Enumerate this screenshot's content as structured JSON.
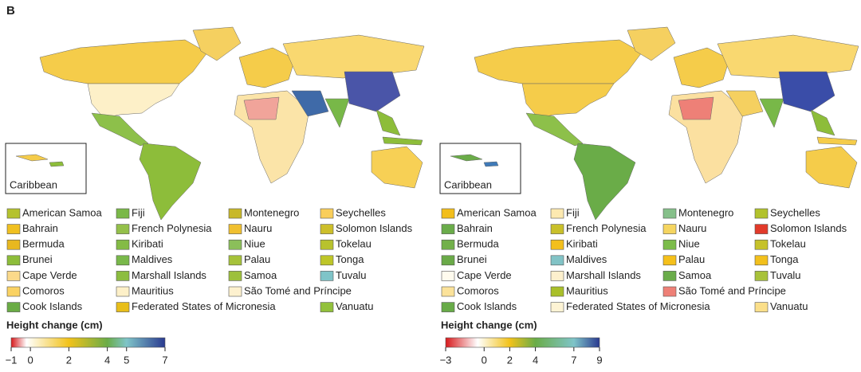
{
  "panel_label": "B",
  "panels": [
    {
      "inset_label": "Caribbean",
      "legend": [
        {
          "name": "American Samoa",
          "color": "#b5c22e"
        },
        {
          "name": "Bahrain",
          "color": "#f0c020"
        },
        {
          "name": "Bermuda",
          "color": "#e8b820"
        },
        {
          "name": "Brunei",
          "color": "#8dbd3a"
        },
        {
          "name": "Cape Verde",
          "color": "#fbd98a"
        },
        {
          "name": "Comoros",
          "color": "#fad263"
        },
        {
          "name": "Cook Islands",
          "color": "#6aac45"
        },
        {
          "name": "Fiji",
          "color": "#7ab848"
        },
        {
          "name": "French Polynesia",
          "color": "#94c04a"
        },
        {
          "name": "Kiribati",
          "color": "#84bb45"
        },
        {
          "name": "Maldives",
          "color": "#79b84a"
        },
        {
          "name": "Marshall Islands",
          "color": "#8cbd40"
        },
        {
          "name": "Mauritius",
          "color": "#fdf0c8"
        },
        {
          "name": "Federated States of Micronesia",
          "color": "#e8be1a"
        },
        {
          "name": "Montenegro",
          "color": "#c8b82a"
        },
        {
          "name": "Nauru",
          "color": "#f0c030"
        },
        {
          "name": "Niue",
          "color": "#8bbf5a"
        },
        {
          "name": "Palau",
          "color": "#a6c23a"
        },
        {
          "name": "Samoa",
          "color": "#9dc03c"
        },
        {
          "name": "São Tomé and Príncipe",
          "color": "#fdf1cf"
        },
        {
          "name": "Seychelles",
          "color": "#f9ce5a"
        },
        {
          "name": "Solomon Islands",
          "color": "#cdbf2a"
        },
        {
          "name": "Tokelau",
          "color": "#b8c22e"
        },
        {
          "name": "Tonga",
          "color": "#bec628"
        },
        {
          "name": "Tuvalu",
          "color": "#7fc4c8"
        },
        {
          "name": "Vanuatu",
          "color": "#92c13c"
        }
      ],
      "colorbar": {
        "title": "Height change (cm)",
        "range": [
          -1,
          7
        ],
        "ticks": [
          {
            "value": -1,
            "label": "−1"
          },
          0,
          2,
          4,
          5,
          7
        ],
        "stops": [
          {
            "value": -1,
            "color": "#d7191c"
          },
          {
            "value": -0.2,
            "color": "#ffffff"
          },
          {
            "value": 2,
            "color": "#f2c21a"
          },
          {
            "value": 4,
            "color": "#6aac48"
          },
          {
            "value": 5,
            "color": "#7fc4c8"
          },
          {
            "value": 7,
            "color": "#2a3a90"
          }
        ]
      }
    },
    {
      "inset_label": "Caribbean",
      "legend": [
        {
          "name": "American Samoa",
          "color": "#f2be1c"
        },
        {
          "name": "Bahrain",
          "color": "#6aac4a"
        },
        {
          "name": "Bermuda",
          "color": "#72b04a"
        },
        {
          "name": "Brunei",
          "color": "#6aaa48"
        },
        {
          "name": "Cape Verde",
          "color": "#fffbee"
        },
        {
          "name": "Comoros",
          "color": "#fbe29a"
        },
        {
          "name": "Cook Islands",
          "color": "#68ab48"
        },
        {
          "name": "Fiji",
          "color": "#fde9b0"
        },
        {
          "name": "French Polynesia",
          "color": "#c9c02a"
        },
        {
          "name": "Kiribati",
          "color": "#f3bf1c"
        },
        {
          "name": "Maldives",
          "color": "#82c3c6"
        },
        {
          "name": "Marshall Islands",
          "color": "#fdf0cd"
        },
        {
          "name": "Mauritius",
          "color": "#a9bf2a"
        },
        {
          "name": "Federated States of Micronesia",
          "color": "#fdf3d4"
        },
        {
          "name": "Montenegro",
          "color": "#86c08a"
        },
        {
          "name": "Nauru",
          "color": "#f5d560"
        },
        {
          "name": "Niue",
          "color": "#7cbc4a"
        },
        {
          "name": "Palau",
          "color": "#f5c01a"
        },
        {
          "name": "Samoa",
          "color": "#6aac4a"
        },
        {
          "name": "São Tomé and Príncipe",
          "color": "#ee8077"
        },
        {
          "name": "Seychelles",
          "color": "#b2c22c"
        },
        {
          "name": "Solomon Islands",
          "color": "#e23a2a"
        },
        {
          "name": "Tokelau",
          "color": "#c6c22a"
        },
        {
          "name": "Tonga",
          "color": "#f2c01c"
        },
        {
          "name": "Tuvalu",
          "color": "#a8c23a"
        },
        {
          "name": "Vanuatu",
          "color": "#fbdf8a"
        }
      ],
      "colorbar": {
        "title": "Height change (cm)",
        "range": [
          -3,
          9
        ],
        "ticks": [
          {
            "value": -3,
            "label": "−3"
          },
          0,
          2,
          4,
          7,
          9
        ],
        "stops": [
          {
            "value": -3,
            "color": "#d7191c"
          },
          {
            "value": -0.5,
            "color": "#ffffff"
          },
          {
            "value": 2,
            "color": "#f2c21a"
          },
          {
            "value": 4,
            "color": "#6aac48"
          },
          {
            "value": 7,
            "color": "#7fc4c8"
          },
          {
            "value": 9,
            "color": "#2a3a90"
          }
        ]
      }
    }
  ]
}
